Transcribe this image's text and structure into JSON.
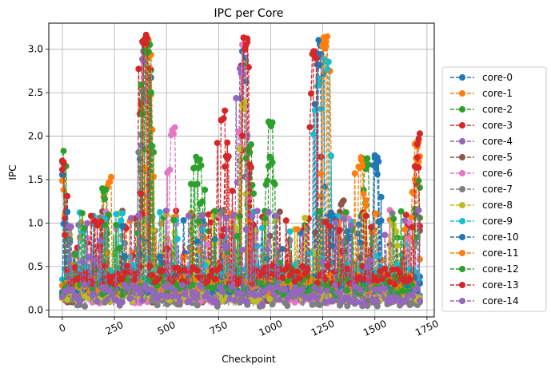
{
  "chart_data": {
    "type": "line",
    "title": "IPC per Core",
    "xlabel": "Checkpoint",
    "ylabel": "IPC",
    "xlim": [
      -65,
      1785
    ],
    "ylim": [
      -0.08,
      3.3
    ],
    "xticks": [
      0,
      250,
      500,
      750,
      1000,
      1250,
      1500,
      1750
    ],
    "yticks": [
      0.0,
      0.5,
      1.0,
      1.5,
      2.0,
      2.5,
      3.0
    ],
    "ytick_labels": [
      "0.0",
      "0.5",
      "1.0",
      "1.5",
      "2.0",
      "2.5",
      "3.0"
    ],
    "grid": true,
    "legend_position": "right",
    "marker": "circle",
    "line_style": "dashed",
    "x_count": 1720,
    "series": [
      {
        "name": "core-0",
        "color": "#1f77b4",
        "baseline": 0.28,
        "spikes": [
          [
            0,
            1.65
          ],
          [
            400,
            3.1
          ],
          [
            870,
            3.05
          ],
          [
            1240,
            3.12
          ],
          [
            1510,
            1.78
          ]
        ]
      },
      {
        "name": "core-1",
        "color": "#ff7f0e",
        "baseline": 0.3,
        "spikes": [
          [
            0,
            1.5
          ],
          [
            225,
            1.55
          ],
          [
            405,
            3.15
          ],
          [
            1265,
            3.15
          ],
          [
            1440,
            1.78
          ],
          [
            1700,
            1.95
          ]
        ]
      },
      {
        "name": "core-2",
        "color": "#2ca02c",
        "baseline": 0.25,
        "spikes": [
          [
            0,
            1.84
          ],
          [
            200,
            1.4
          ],
          [
            410,
            3.1
          ],
          [
            660,
            1.78
          ],
          [
            875,
            2.9
          ],
          [
            1000,
            2.24
          ],
          [
            1460,
            1.77
          ]
        ]
      },
      {
        "name": "core-3",
        "color": "#d62728",
        "baseline": 0.3,
        "spikes": [
          [
            0,
            1.73
          ],
          [
            395,
            3.17
          ],
          [
            770,
            2.31
          ],
          [
            880,
            3.15
          ],
          [
            1215,
            3.03
          ],
          [
            1710,
            2.05
          ]
        ]
      },
      {
        "name": "core-4",
        "color": "#9467bd",
        "baseline": 0.2,
        "spikes": [
          [
            390,
            2.9
          ],
          [
            860,
            2.79
          ]
        ]
      },
      {
        "name": "core-5",
        "color": "#8c564b",
        "baseline": 0.18,
        "spikes": [
          [
            1340,
            1.27
          ]
        ]
      },
      {
        "name": "core-6",
        "color": "#e377c2",
        "baseline": 0.18,
        "spikes": [
          [
            530,
            2.14
          ],
          [
            875,
            3.15
          ]
        ]
      },
      {
        "name": "core-7",
        "color": "#7f7f7f",
        "baseline": 0.15,
        "spikes": [
          [
            395,
            2.55
          ]
        ]
      },
      {
        "name": "core-8",
        "color": "#bcbd22",
        "baseline": 0.2,
        "spikes": [
          [
            870,
            2.4
          ],
          [
            1590,
            1.05
          ]
        ]
      },
      {
        "name": "core-9",
        "color": "#17becf",
        "baseline": 0.42,
        "spikes": [
          [
            1230,
            2.72
          ],
          [
            1270,
            2.92
          ]
        ]
      },
      {
        "name": "core-10",
        "color": "#1f77b4",
        "baseline": 0.3,
        "spikes": [
          [
            1235,
            2.95
          ],
          [
            1500,
            1.77
          ]
        ]
      },
      {
        "name": "core-11",
        "color": "#ff7f0e",
        "baseline": 0.3,
        "spikes": [
          [
            415,
            3.0
          ],
          [
            1255,
            3.16
          ],
          [
            1430,
            1.78
          ],
          [
            1705,
            1.78
          ]
        ]
      },
      {
        "name": "core-12",
        "color": "#2ca02c",
        "baseline": 0.28,
        "spikes": [
          [
            405,
            3.08
          ],
          [
            640,
            1.77
          ],
          [
            895,
            1.96
          ],
          [
            1000,
            1.78
          ],
          [
            1720,
            1.55
          ]
        ]
      },
      {
        "name": "core-13",
        "color": "#d62728",
        "baseline": 0.4,
        "spikes": [
          [
            0,
            1.71
          ],
          [
            400,
            3.17
          ],
          [
            790,
            1.77
          ],
          [
            880,
            3.14
          ],
          [
            1210,
            3.03
          ],
          [
            1700,
            1.77
          ]
        ]
      },
      {
        "name": "core-14",
        "color": "#9467bd",
        "baseline": 0.18,
        "spikes": []
      }
    ]
  }
}
